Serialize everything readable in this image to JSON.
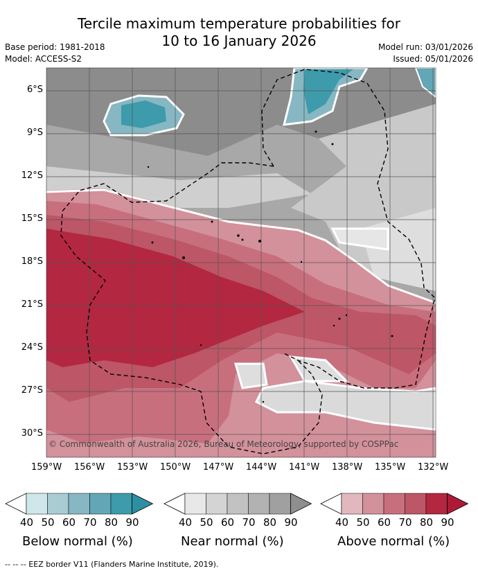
{
  "title_line1": "Tercile maximum temperature probabilities for",
  "title_line2": "10 to 16 January 2026",
  "meta": {
    "base_period": "Base period: 1981-2018",
    "model": "Model: ACCESS-S2",
    "model_run": "Model run: 03/01/2026",
    "issued": "Issued: 05/01/2026"
  },
  "lat_labels": [
    "6°S",
    "9°S",
    "12°S",
    "15°S",
    "18°S",
    "21°S",
    "24°S",
    "27°S",
    "30°S"
  ],
  "lon_labels": [
    "159°W",
    "156°W",
    "153°W",
    "150°W",
    "147°W",
    "144°W",
    "141°W",
    "138°W",
    "135°W",
    "132°W"
  ],
  "copyright": "© Commonwealth of Australia 2026, Bureau of Meteorology, supported by COSPPac",
  "colorbars": [
    {
      "label": "Below normal (%)",
      "ticks": [
        "40",
        "50",
        "60",
        "70",
        "80",
        "90"
      ],
      "colors": [
        "#cfe6ea",
        "#a9ccd3",
        "#86b7c2",
        "#63a7b6",
        "#3d9bab"
      ]
    },
    {
      "label": "Near normal (%)",
      "ticks": [
        "40",
        "50",
        "60",
        "70",
        "80",
        "90"
      ],
      "colors": [
        "#e8e8e8",
        "#d4d4d4",
        "#c2c2c2",
        "#b2b2b2",
        "#a0a0a0"
      ]
    },
    {
      "label": "Above normal (%)",
      "ticks": [
        "40",
        "50",
        "60",
        "70",
        "80",
        "90"
      ],
      "colors": [
        "#e2b7be",
        "#d3919b",
        "#c86f7d",
        "#bd5666",
        "#b32740"
      ]
    }
  ],
  "arrow_colors": {
    "below": "#2e8fa3",
    "near": "#8f8f8f",
    "above": "#ad1a38"
  },
  "footer": "--  --  -- EEZ border V11 (Flanders Marine Institute, 2019)."
}
